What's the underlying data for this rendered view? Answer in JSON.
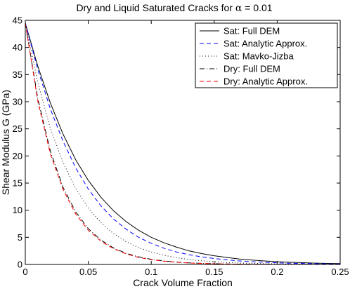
{
  "chart_data": {
    "type": "line",
    "title_prefix": "Dry and Liquid Saturated Cracks for ",
    "title_symbol": "α",
    "title_suffix": " = 0.01",
    "xlabel": "Crack Volume Fraction",
    "ylabel": "Shear Modulus G (GPa)",
    "xlim": [
      0,
      0.25
    ],
    "ylim": [
      0,
      45
    ],
    "xticks": [
      0,
      0.05,
      0.1,
      0.15,
      0.2,
      0.25
    ],
    "xtick_labels": [
      "0",
      "0.05",
      "0.1",
      "0.15",
      "0.2",
      "0.25"
    ],
    "yticks": [
      0,
      5,
      10,
      15,
      20,
      25,
      30,
      35,
      40,
      45
    ],
    "ytick_labels": [
      "0",
      "5",
      "10",
      "15",
      "20",
      "25",
      "30",
      "35",
      "40",
      "45"
    ],
    "grid": false,
    "legend_position": "top-right",
    "x": [
      0,
      0.01,
      0.02,
      0.03,
      0.04,
      0.05,
      0.06,
      0.07,
      0.08,
      0.09,
      0.1,
      0.11,
      0.12,
      0.13,
      0.14,
      0.15,
      0.16,
      0.17,
      0.18,
      0.19,
      0.2,
      0.21,
      0.22,
      0.23,
      0.24,
      0.25
    ],
    "series": [
      {
        "name": "Sat: Full DEM",
        "color": "#000000",
        "dash": "solid",
        "values": [
          44.5,
          36.5,
          29.7,
          24.0,
          19.3,
          15.5,
          12.4,
          9.9,
          7.9,
          6.3,
          5.0,
          4.0,
          3.2,
          2.5,
          2.0,
          1.6,
          1.3,
          1.0,
          0.8,
          0.65,
          0.5,
          0.4,
          0.32,
          0.25,
          0.2,
          0.16
        ]
      },
      {
        "name": "Sat: Analytic Approx.",
        "color": "#0000ff",
        "dash": "dashed",
        "values": [
          44.5,
          35.9,
          28.6,
          22.7,
          17.8,
          13.9,
          10.8,
          8.4,
          6.5,
          5.0,
          3.9,
          3.0,
          2.3,
          1.8,
          1.4,
          1.1,
          0.85,
          0.65,
          0.5,
          0.4,
          0.3,
          0.23,
          0.18,
          0.14,
          0.11,
          0.08
        ]
      },
      {
        "name": "Sat: Mavko-Jizba",
        "color": "#000000",
        "dash": "dotted",
        "values": [
          44.5,
          33.5,
          25.0,
          18.8,
          14.0,
          10.4,
          7.7,
          5.7,
          4.2,
          3.1,
          2.3,
          1.7,
          1.25,
          0.92,
          0.68,
          0.5,
          0.37,
          0.27,
          0.2,
          0.15,
          0.11,
          0.08,
          0.06,
          0.04,
          0.03,
          0.02
        ]
      },
      {
        "name": "Dry: Full DEM",
        "color": "#000000",
        "dash": "dashdot",
        "values": [
          44.5,
          30.5,
          20.8,
          14.2,
          9.7,
          6.6,
          4.5,
          3.05,
          2.05,
          1.4,
          0.95,
          0.64,
          0.43,
          0.29,
          0.2,
          0.13,
          0.09,
          0.06,
          0.04,
          0.03,
          0.02,
          0.015,
          0.01,
          0.007,
          0.005,
          0.003
        ]
      },
      {
        "name": "Dry: Analytic Approx.",
        "color": "#ff0000",
        "dash": "dashed",
        "values": [
          44.5,
          30.0,
          20.3,
          13.8,
          9.3,
          6.3,
          4.3,
          2.9,
          1.95,
          1.3,
          0.88,
          0.6,
          0.4,
          0.27,
          0.18,
          0.12,
          0.08,
          0.055,
          0.037,
          0.025,
          0.017,
          0.012,
          0.008,
          0.005,
          0.004,
          0.003
        ]
      }
    ]
  }
}
